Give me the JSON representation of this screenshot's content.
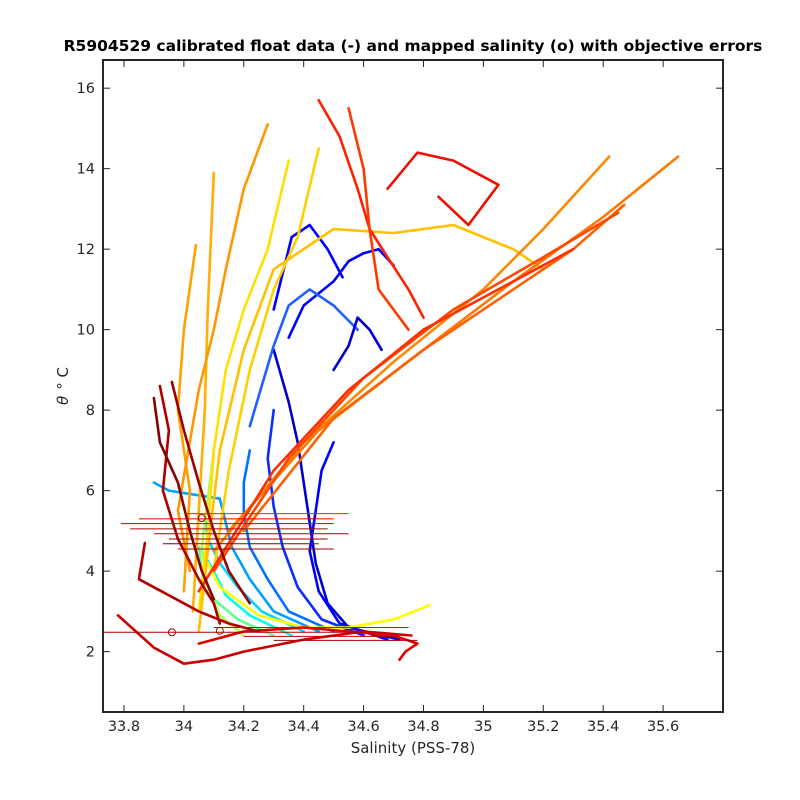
{
  "chart_data": {
    "type": "line",
    "title": "R5904529 calibrated float data (-) and mapped salinity (o) with objective errors",
    "xlabel": "Salinity (PSS-78)",
    "ylabel_symbol": "θ",
    "ylabel_unit": "° C",
    "xlim": [
      33.73,
      35.8
    ],
    "ylim": [
      0.5,
      16.7
    ],
    "xticks": [
      33.8,
      34,
      34.2,
      34.4,
      34.6,
      34.8,
      35,
      35.2,
      35.4,
      35.6
    ],
    "yticks": [
      2,
      4,
      6,
      8,
      10,
      12,
      14,
      16
    ],
    "xtick_labels": [
      "33.8",
      "34",
      "34.2",
      "34.4",
      "34.6",
      "34.8",
      "35",
      "35.2",
      "35.4",
      "35.6"
    ],
    "ytick_labels": [
      "2",
      "4",
      "6",
      "8",
      "10",
      "12",
      "14",
      "16"
    ],
    "grid": false,
    "legend": "none",
    "colormap": [
      "#00008f",
      "#0000ff",
      "#0080ff",
      "#00ffff",
      "#80ff80",
      "#ffff00",
      "#ff8000",
      "#ff0000",
      "#800000"
    ],
    "series": [
      {
        "color": "#0000c8",
        "x": [
          34.72,
          34.55,
          34.48,
          34.44,
          34.42,
          34.4,
          34.38,
          34.35,
          34.3
        ],
        "y": [
          2.3,
          2.6,
          3.2,
          4.2,
          5.2,
          6.2,
          7.2,
          8.2,
          9.5
        ]
      },
      {
        "color": "#0000ff",
        "x": [
          34.68,
          34.52,
          34.45,
          34.42,
          34.44,
          34.46,
          34.5
        ],
        "y": [
          2.3,
          2.7,
          3.5,
          4.5,
          5.5,
          6.5,
          7.2
        ]
      },
      {
        "color": "#0a2cff",
        "x": [
          34.6,
          34.46,
          34.38,
          34.33,
          34.3,
          34.28,
          34.3
        ],
        "y": [
          2.4,
          2.8,
          3.6,
          4.6,
          5.6,
          6.8,
          8.0
        ]
      },
      {
        "color": "#0000ff",
        "x": [
          34.35,
          34.4,
          34.5,
          34.55,
          34.6,
          34.65,
          34.7
        ],
        "y": [
          9.8,
          10.6,
          11.2,
          11.7,
          11.9,
          12.0,
          11.6
        ]
      },
      {
        "color": "#0000ff",
        "x": [
          34.3,
          34.36,
          34.42,
          34.48,
          34.53
        ],
        "y": [
          10.5,
          12.3,
          12.6,
          12.0,
          11.3
        ]
      },
      {
        "color": "#2060ff",
        "x": [
          34.22,
          34.26,
          34.3,
          34.35,
          34.42,
          34.5,
          34.58
        ],
        "y": [
          7.6,
          8.6,
          9.6,
          10.6,
          11.0,
          10.6,
          10.0
        ]
      },
      {
        "color": "#0000d0",
        "x": [
          34.5,
          34.55,
          34.58,
          34.62,
          34.66
        ],
        "y": [
          9.0,
          9.6,
          10.3,
          10.0,
          9.5
        ]
      },
      {
        "color": "#0070ff",
        "x": [
          34.5,
          34.35,
          34.28,
          34.22,
          34.2,
          34.2,
          34.22
        ],
        "y": [
          2.5,
          3.0,
          3.8,
          4.6,
          5.4,
          6.2,
          7.0
        ]
      },
      {
        "color": "#00a0ff",
        "x": [
          34.45,
          34.3,
          34.22,
          34.16,
          34.14,
          34.12,
          33.95,
          33.9
        ],
        "y": [
          2.5,
          3.0,
          3.8,
          4.6,
          5.2,
          5.8,
          6.0,
          6.2
        ]
      },
      {
        "color": "#00d8ff",
        "x": [
          34.4,
          34.26,
          34.18,
          34.12,
          34.08,
          34.07
        ],
        "y": [
          2.5,
          3.0,
          3.6,
          4.2,
          4.8,
          5.4
        ]
      },
      {
        "color": "#00ffee",
        "x": [
          34.36,
          34.22,
          34.14,
          34.1,
          34.06
        ],
        "y": [
          2.4,
          2.9,
          3.4,
          4.0,
          4.5
        ]
      },
      {
        "color": "#60ff90",
        "x": [
          34.3,
          34.18,
          34.1,
          34.06,
          34.05
        ],
        "y": [
          2.4,
          2.8,
          3.3,
          4.0,
          4.6
        ]
      },
      {
        "color": "#b0ff50",
        "x": [
          34.2,
          34.12,
          34.08,
          34.06,
          34.08,
          34.1
        ],
        "y": [
          2.4,
          2.9,
          3.6,
          4.6,
          5.8,
          7.0
        ]
      },
      {
        "color": "#ffff00",
        "x": [
          34.82,
          34.7,
          34.55,
          34.4,
          34.25,
          34.12,
          34.08
        ],
        "y": [
          3.15,
          2.8,
          2.6,
          2.6,
          2.9,
          3.6,
          4.2
        ]
      },
      {
        "color": "#ffe000",
        "x": [
          34.05,
          34.08,
          34.1,
          34.14,
          34.2,
          34.28,
          34.35
        ],
        "y": [
          3.0,
          5.0,
          7.0,
          9.0,
          10.5,
          12.0,
          14.2
        ]
      },
      {
        "color": "#ffd000",
        "x": [
          34.1,
          34.15,
          34.22,
          34.3,
          34.38,
          34.45
        ],
        "y": [
          4.0,
          6.5,
          9.0,
          11.0,
          12.3,
          14.5
        ]
      },
      {
        "color": "#ffc000",
        "x": [
          34.05,
          34.08,
          34.12,
          34.2,
          34.3,
          34.5,
          34.7,
          34.9,
          35.1,
          35.2
        ],
        "y": [
          2.5,
          4.5,
          7.0,
          9.5,
          11.5,
          12.5,
          12.4,
          12.6,
          12.0,
          11.5
        ]
      },
      {
        "color": "#ffb000",
        "x": [
          34.03,
          34.05,
          34.07,
          34.08,
          34.1
        ],
        "y": [
          3.0,
          5.5,
          8.0,
          10.5,
          13.9
        ]
      },
      {
        "color": "#ffa000",
        "x": [
          34.0,
          34.02,
          33.98,
          34.0,
          34.04
        ],
        "y": [
          3.5,
          6.0,
          8.0,
          10.0,
          12.1
        ]
      },
      {
        "color": "#ff9800",
        "x": [
          34.02,
          33.98,
          34.05,
          34.1,
          34.14,
          34.2,
          34.28
        ],
        "y": [
          4.0,
          5.5,
          8.5,
          10.0,
          11.5,
          13.5,
          15.1
        ]
      },
      {
        "color": "#ff8800",
        "x": [
          34.1,
          34.4,
          34.7,
          35.0,
          35.2,
          35.42
        ],
        "y": [
          4.5,
          7.2,
          9.2,
          11.0,
          12.5,
          14.3
        ]
      },
      {
        "color": "#ff7800",
        "x": [
          34.15,
          34.45,
          34.8,
          35.1,
          35.4,
          35.65
        ],
        "y": [
          5.0,
          7.5,
          9.5,
          11.2,
          12.8,
          14.3
        ]
      },
      {
        "color": "#ff6000",
        "x": [
          34.2,
          34.5,
          34.8,
          35.1,
          35.3,
          35.47
        ],
        "y": [
          5.0,
          7.8,
          9.5,
          11.0,
          12.0,
          13.1
        ]
      },
      {
        "color": "#ff4800",
        "x": [
          34.1,
          34.35,
          34.6,
          34.9,
          35.2,
          35.45
        ],
        "y": [
          4.0,
          6.8,
          8.8,
          10.5,
          11.8,
          12.9
        ]
      },
      {
        "color": "#ff3000",
        "x": [
          34.05,
          34.3,
          34.55,
          34.8,
          35.05,
          35.3
        ],
        "y": [
          3.5,
          6.5,
          8.5,
          10.0,
          11.0,
          12.0
        ]
      },
      {
        "color": "#ff2000",
        "x": [
          34.45,
          34.52,
          34.58,
          34.62,
          34.68,
          34.75,
          34.8
        ],
        "y": [
          15.7,
          14.8,
          13.5,
          12.5,
          11.8,
          11.0,
          10.3
        ]
      },
      {
        "color": "#ee1000",
        "x": [
          34.68,
          34.78,
          34.9,
          35.05,
          34.95,
          34.85
        ],
        "y": [
          13.5,
          14.4,
          14.2,
          13.6,
          12.6,
          13.3
        ]
      },
      {
        "color": "#ff3800",
        "x": [
          34.55,
          34.6,
          34.62,
          34.65,
          34.7,
          34.75
        ],
        "y": [
          15.5,
          14.0,
          12.5,
          11.0,
          10.5,
          10.0
        ]
      },
      {
        "color": "#dd0000",
        "x": [
          34.05,
          34.2,
          34.4,
          34.55,
          34.7,
          34.78,
          34.74,
          34.72
        ],
        "y": [
          2.2,
          2.5,
          2.6,
          2.5,
          2.4,
          2.2,
          2.0,
          1.8
        ]
      },
      {
        "color": "#cc0000",
        "x": [
          33.78,
          33.9,
          34.0,
          34.1,
          34.2,
          34.4,
          34.6,
          34.76
        ],
        "y": [
          2.9,
          2.1,
          1.7,
          1.8,
          2.0,
          2.3,
          2.5,
          2.4
        ]
      },
      {
        "color": "#aa0000",
        "x": [
          33.92,
          33.95,
          33.93,
          33.98,
          34.05,
          34.1,
          34.12
        ],
        "y": [
          8.6,
          7.5,
          6.0,
          4.8,
          3.8,
          3.2,
          2.7
        ]
      },
      {
        "color": "#880000",
        "x": [
          33.9,
          33.92,
          33.98,
          34.02,
          34.06,
          34.1
        ],
        "y": [
          8.3,
          7.2,
          6.2,
          5.0,
          4.0,
          3.3
        ]
      },
      {
        "color": "#990000",
        "x": [
          33.96,
          34.0,
          34.05,
          34.1,
          34.15,
          34.22
        ],
        "y": [
          8.7,
          7.5,
          6.2,
          5.0,
          4.0,
          3.2
        ]
      },
      {
        "color": "#b00000",
        "x": [
          33.87,
          33.85,
          33.95,
          34.05,
          34.15,
          34.25
        ],
        "y": [
          4.7,
          3.8,
          3.4,
          3.0,
          2.7,
          2.5
        ]
      }
    ],
    "markers": {
      "style": "o",
      "points": [
        {
          "x": 33.96,
          "y": 2.48,
          "color": "#b00000"
        },
        {
          "x": 34.06,
          "y": 5.32,
          "color": "#b00000"
        },
        {
          "x": 34.12,
          "y": 2.52,
          "color": "#c00000"
        }
      ]
    },
    "error_bars": [
      {
        "y": 5.43,
        "x0": 34.0,
        "x1": 34.55,
        "color": "#ff2000"
      },
      {
        "y": 5.3,
        "x0": 33.85,
        "x1": 34.5,
        "color": "#dd0000"
      },
      {
        "y": 5.18,
        "x0": 33.79,
        "x1": 34.5,
        "color": "#cc0000"
      },
      {
        "y": 5.05,
        "x0": 33.82,
        "x1": 34.48,
        "color": "#b00000"
      },
      {
        "y": 4.93,
        "x0": 33.9,
        "x1": 34.55,
        "color": "#aa0000"
      },
      {
        "y": 4.8,
        "x0": 33.95,
        "x1": 34.48,
        "color": "#900000"
      },
      {
        "y": 4.68,
        "x0": 33.93,
        "x1": 34.45,
        "color": "#880000"
      },
      {
        "y": 4.55,
        "x0": 33.98,
        "x1": 34.5,
        "color": "#990000"
      },
      {
        "y": 2.6,
        "x0": 34.1,
        "x1": 34.75,
        "color": "#dd0000"
      },
      {
        "y": 2.48,
        "x0": 33.73,
        "x1": 34.6,
        "color": "#b00000"
      },
      {
        "y": 2.38,
        "x0": 34.2,
        "x1": 34.72,
        "color": "#cc0000"
      },
      {
        "y": 2.28,
        "x0": 34.3,
        "x1": 34.78,
        "color": "#aa0000"
      }
    ]
  }
}
